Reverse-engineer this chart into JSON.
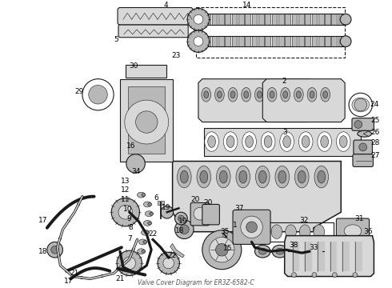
{
  "title": "Valve Cover Diagram for ER3Z-6582-C",
  "background_color": "#ffffff",
  "line_color": "#1a1a1a",
  "label_color": "#000000",
  "fig_width": 4.9,
  "fig_height": 3.6,
  "dpi": 100,
  "gray_light": "#d8d8d8",
  "gray_mid": "#b8b8b8",
  "gray_dark": "#888888",
  "lw_main": 0.8,
  "lw_thin": 0.4
}
